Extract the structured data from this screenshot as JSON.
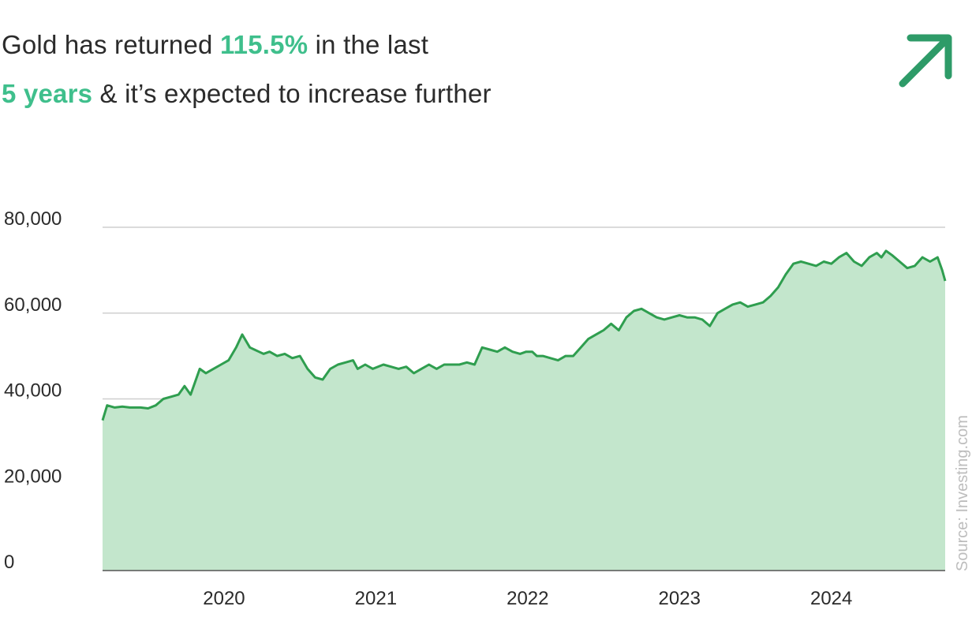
{
  "headline": {
    "part1": "Gold has returned ",
    "highlight1": "115.5%",
    "part2": " in the last",
    "highlight2": "5 years",
    "part3": " & it’s expected to increase further"
  },
  "icons": {
    "trend_icon": "arrow-up-right-icon"
  },
  "colors": {
    "accent": "#3fbf8c",
    "line": "#2f9e4f",
    "area": "#c3e6cc",
    "grid": "#cfcfcf",
    "arrow": "#2e9b68"
  },
  "source_label": "Source: Investing.com",
  "chart_data": {
    "type": "area",
    "title": "",
    "xlabel": "",
    "ylabel": "",
    "ylim": [
      0,
      80000
    ],
    "y_ticks": [
      0,
      20000,
      40000,
      60000,
      80000
    ],
    "y_tick_labels": [
      "0",
      "20,000",
      "40,000",
      "60,000",
      "80,000"
    ],
    "x_range": [
      2019.2,
      2024.75
    ],
    "x_ticks": [
      2020,
      2021,
      2022,
      2023,
      2024
    ],
    "x_tick_labels": [
      "2020",
      "2021",
      "2022",
      "2023",
      "2024"
    ],
    "grid": true,
    "series": [
      {
        "x": [
          2019.2,
          2019.23,
          2019.28,
          2019.33,
          2019.38,
          2019.45,
          2019.5,
          2019.55,
          2019.6,
          2019.65,
          2019.7,
          2019.74,
          2019.78,
          2019.81,
          2019.84,
          2019.88,
          2019.93,
          2019.98,
          2020.03,
          2020.08,
          2020.12,
          2020.17,
          2020.2,
          2020.23,
          2020.26,
          2020.3,
          2020.35,
          2020.4,
          2020.45,
          2020.5,
          2020.55,
          2020.6,
          2020.65,
          2020.7,
          2020.75,
          2020.8,
          2020.85,
          2020.88,
          2020.93,
          2020.98,
          2021.05,
          2021.1,
          2021.15,
          2021.2,
          2021.25,
          2021.3,
          2021.35,
          2021.4,
          2021.45,
          2021.5,
          2021.55,
          2021.6,
          2021.65,
          2021.7,
          2021.75,
          2021.8,
          2021.85,
          2021.9,
          2021.95,
          2021.99,
          2022.03,
          2022.06,
          2022.1,
          2022.15,
          2022.2,
          2022.25,
          2022.3,
          2022.35,
          2022.4,
          2022.45,
          2022.5,
          2022.55,
          2022.6,
          2022.65,
          2022.7,
          2022.75,
          2022.8,
          2022.85,
          2022.9,
          2022.95,
          2023.0,
          2023.05,
          2023.1,
          2023.15,
          2023.2,
          2023.25,
          2023.3,
          2023.35,
          2023.4,
          2023.45,
          2023.5,
          2023.55,
          2023.6,
          2023.65,
          2023.7,
          2023.75,
          2023.8,
          2023.85,
          2023.9,
          2023.95,
          2024.0,
          2024.05,
          2024.1,
          2024.15,
          2024.2,
          2024.25,
          2024.3,
          2024.33,
          2024.36,
          2024.4,
          2024.45,
          2024.5,
          2024.55,
          2024.6,
          2024.65,
          2024.7,
          2024.73,
          2024.75
        ],
        "values": [
          35000,
          38500,
          38000,
          38200,
          38000,
          38000,
          37800,
          38500,
          40000,
          40500,
          41000,
          43000,
          41000,
          44000,
          47000,
          46000,
          47000,
          48000,
          49000,
          52000,
          55000,
          52000,
          51500,
          51000,
          50500,
          51000,
          50000,
          50500,
          49500,
          50000,
          47000,
          45000,
          44500,
          47000,
          48000,
          48500,
          49000,
          47000,
          48000,
          47000,
          48000,
          47500,
          47000,
          47500,
          46000,
          47000,
          48000,
          47000,
          48000,
          48000,
          48000,
          48500,
          48000,
          52000,
          51500,
          51000,
          52000,
          51000,
          50500,
          51000,
          51000,
          50000,
          50000,
          49500,
          49000,
          50000,
          50000,
          52000,
          54000,
          55000,
          56000,
          57500,
          56000,
          59000,
          60500,
          61000,
          60000,
          59000,
          58500,
          59000,
          59500,
          59000,
          59000,
          58500,
          57000,
          60000,
          61000,
          62000,
          62500,
          61500,
          62000,
          62500,
          64000,
          66000,
          69000,
          71500,
          72000,
          71500,
          71000,
          72000,
          71500,
          73000,
          74000,
          72000,
          71000,
          73000,
          74000,
          73000,
          74500,
          73500,
          72000,
          70500,
          71000,
          73000,
          72000,
          73000,
          70000,
          67500
        ]
      }
    ]
  }
}
